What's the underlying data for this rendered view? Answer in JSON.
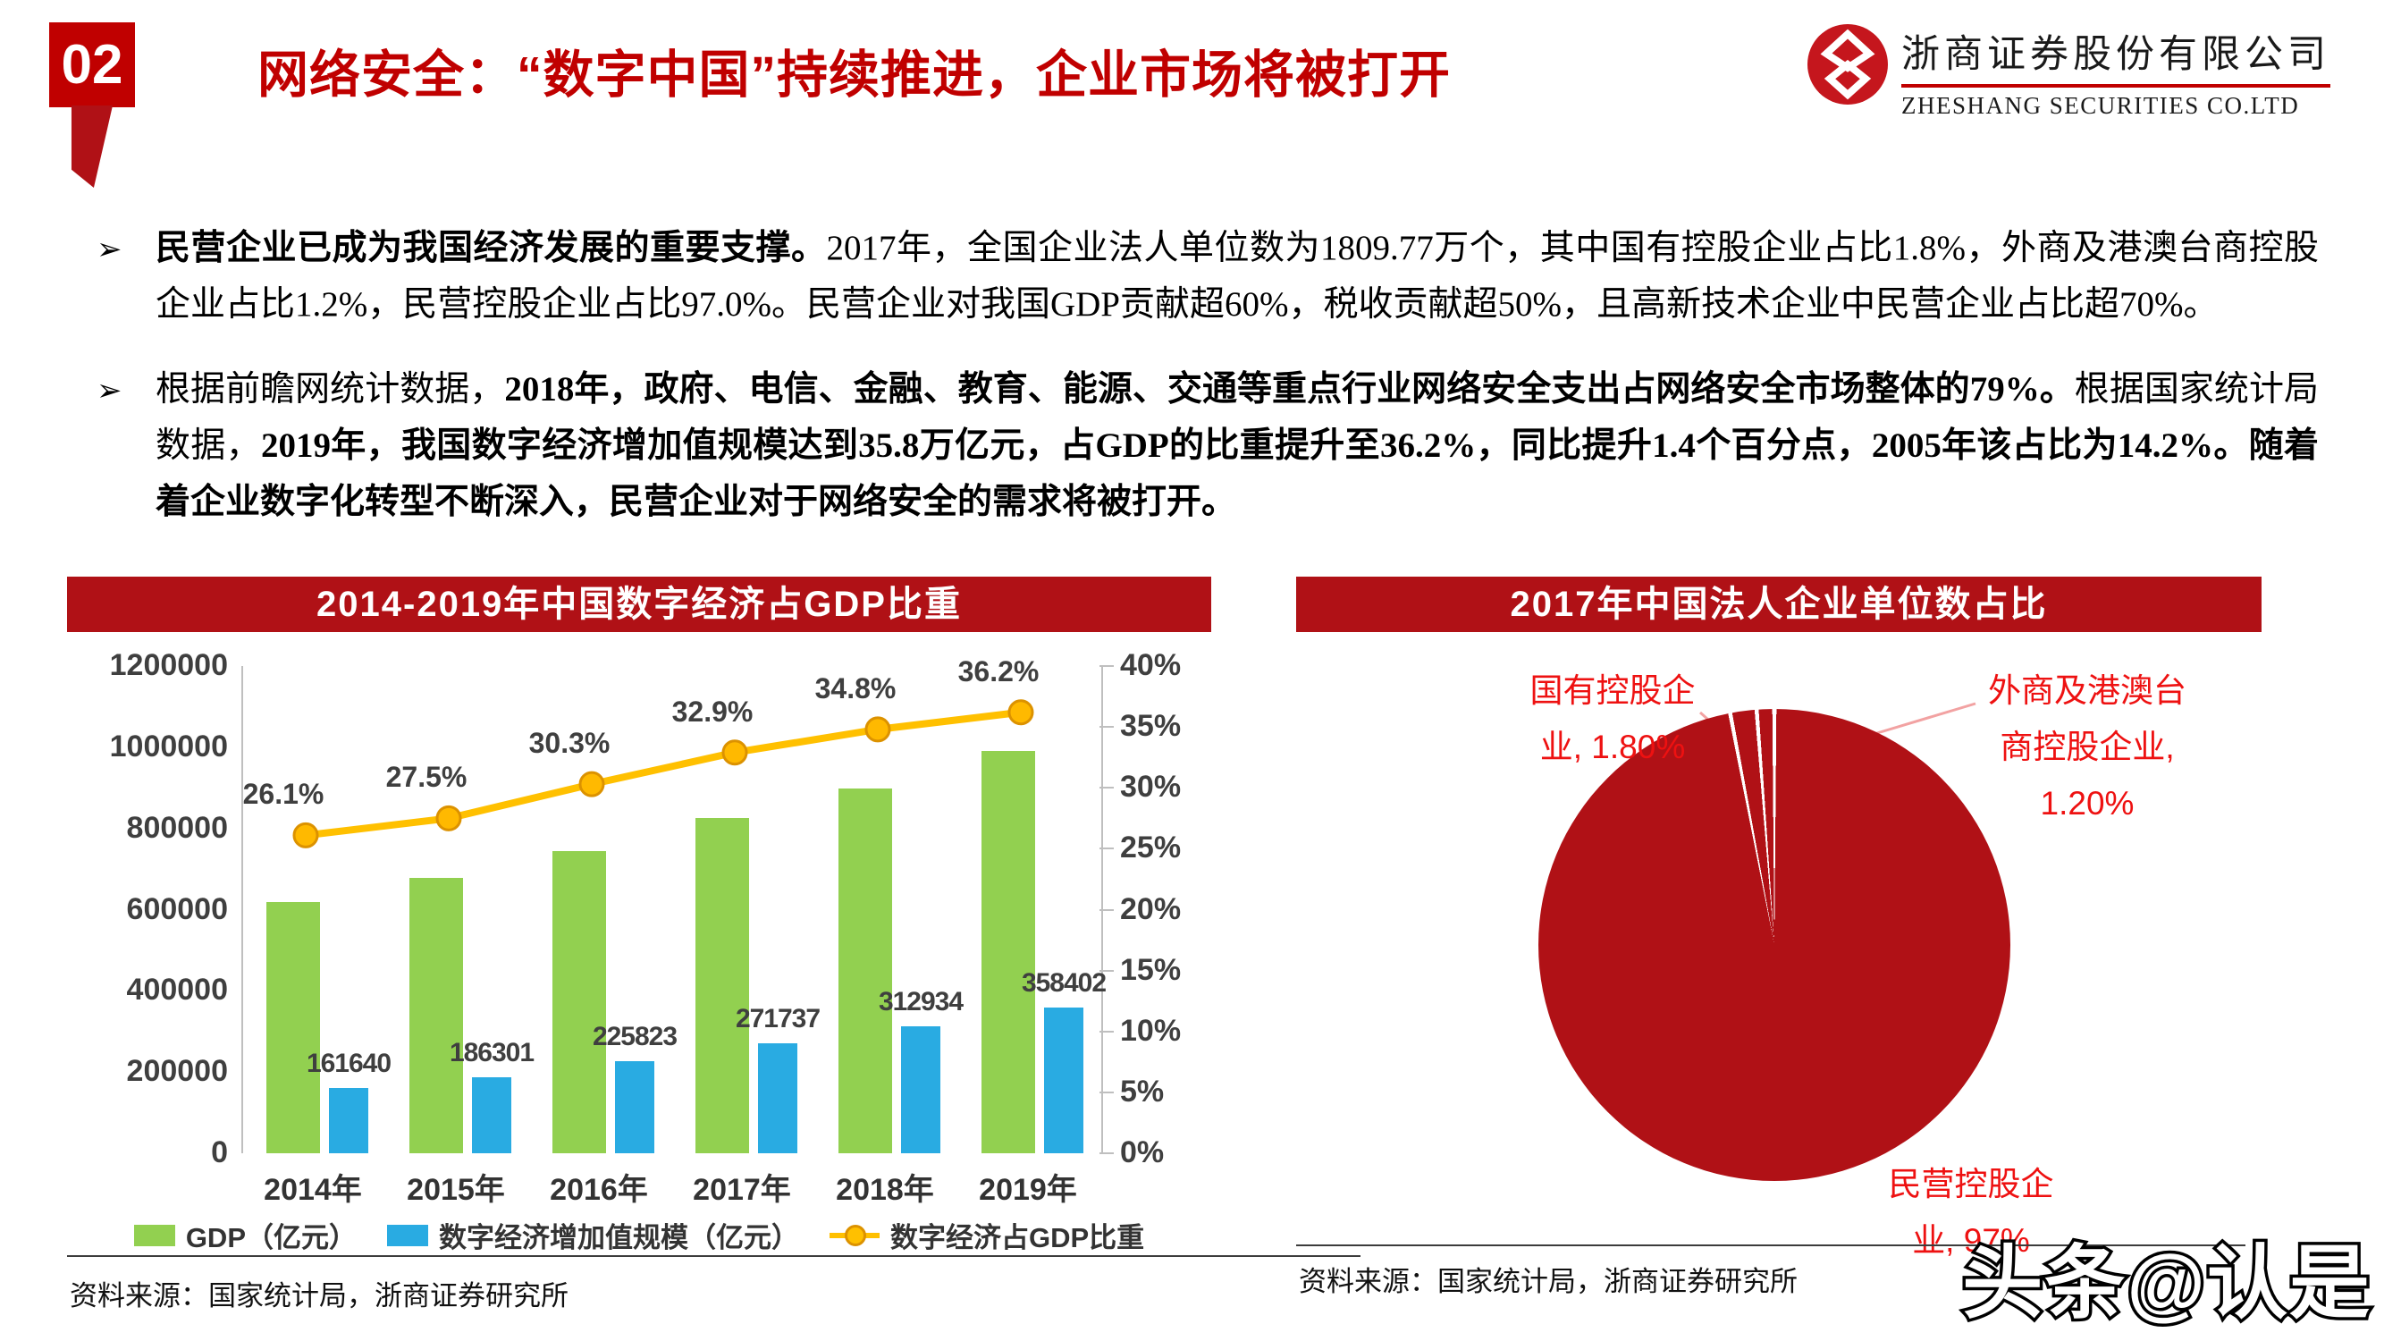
{
  "page": {
    "badge": "02",
    "title": "网络安全：“数字中国”持续推进，企业市场将被打开"
  },
  "logo": {
    "name_cn": "浙商证券股份有限公司",
    "name_en": "ZHESHANG SECURITIES CO.LTD"
  },
  "bullets": [
    {
      "marker": "➢",
      "segments": [
        {
          "text": "民营企业已成为我国经济发展的重要支撑。",
          "bold": true
        },
        {
          "text": "2017年，全国企业法人单位数为1809.77万个，其中国有控股企业占比1.8%，外商及港澳台商控股企业占比1.2%，民营控股企业占比97.0%。民营企业对我国GDP贡献超60%，税收贡献超50%，且高新技术企业中民营企业占比超70%。",
          "bold": false
        }
      ]
    },
    {
      "marker": "➢",
      "segments": [
        {
          "text": "根据前瞻网统计数据，",
          "bold": false
        },
        {
          "text": "2018年，政府、电信、金融、教育、能源、交通等重点行业网络安全支出占网络安全市场整体的79%。",
          "bold": true
        },
        {
          "text": "根据国家统计局数据，",
          "bold": false
        },
        {
          "text": "2019年，我国数字经济增加值规模达到35.8万亿元，占GDP的比重提升至36.2%，同比提升1.4个百分点，2005年该占比为14.2%。随着着企业数字化转型不断深入，民营企业对于网络安全的需求将被打开。",
          "bold": true
        }
      ]
    }
  ],
  "chart_data": [
    {
      "type": "bar",
      "title": "2014-2019年中国数字经济占GDP比重",
      "categories": [
        "2014年",
        "2015年",
        "2016年",
        "2017年",
        "2018年",
        "2019年"
      ],
      "series": [
        {
          "name": "GDP（亿元）",
          "kind": "bar",
          "color": "#92d050",
          "values": [
            619300,
            677500,
            745300,
            825900,
            899200,
            990100
          ]
        },
        {
          "name": "数字经济增加值规模（亿元）",
          "kind": "bar",
          "color": "#29abe2",
          "values": [
            161640,
            186301,
            225823,
            271737,
            312934,
            358402
          ],
          "labels": [
            "161640",
            "186301",
            "225823",
            "271737",
            "312934",
            "358402"
          ]
        },
        {
          "name": "数字经济占GDP比重",
          "kind": "line",
          "color": "#ffc000",
          "axis": "right",
          "values": [
            26.1,
            27.5,
            30.3,
            32.9,
            34.8,
            36.2
          ],
          "labels": [
            "26.1%",
            "27.5%",
            "30.3%",
            "32.9%",
            "34.8%",
            "36.2%"
          ]
        }
      ],
      "left_axis": {
        "min": 0,
        "max": 1200000,
        "ticks": [
          "1200000",
          "1000000",
          "800000",
          "600000",
          "400000",
          "200000",
          "0"
        ]
      },
      "right_axis": {
        "min": 0,
        "max": 40,
        "ticks": [
          "40%",
          "35%",
          "30%",
          "25%",
          "20%",
          "15%",
          "10%",
          "5%",
          "0%"
        ]
      },
      "grid": false,
      "legend_position": "bottom"
    },
    {
      "type": "pie",
      "title": "2017年中国法人企业单位数占比",
      "color": "#b01116",
      "label_color": "#ee1111",
      "leader_color": "#f2a2a2",
      "slices": [
        {
          "name": "民营控股企业",
          "pct": 97,
          "label_lines": [
            "民营控股企",
            "业, 97%"
          ]
        },
        {
          "name": "国有控股企业",
          "pct": 1.8,
          "label_lines": [
            "国有控股企",
            "业, 1.80%"
          ]
        },
        {
          "name": "外商及港澳台商控股企业",
          "pct": 1.2,
          "label_lines": [
            "外商及港澳台",
            "商控股企业,",
            "1.20%"
          ]
        }
      ],
      "start_angle_deg": 0,
      "clockwise": true
    }
  ],
  "sources": {
    "left": "资料来源：国家统计局，浙商证券研究所",
    "right": "资料来源：国家统计局，浙商证券研究所"
  },
  "watermark": "头条@认是"
}
